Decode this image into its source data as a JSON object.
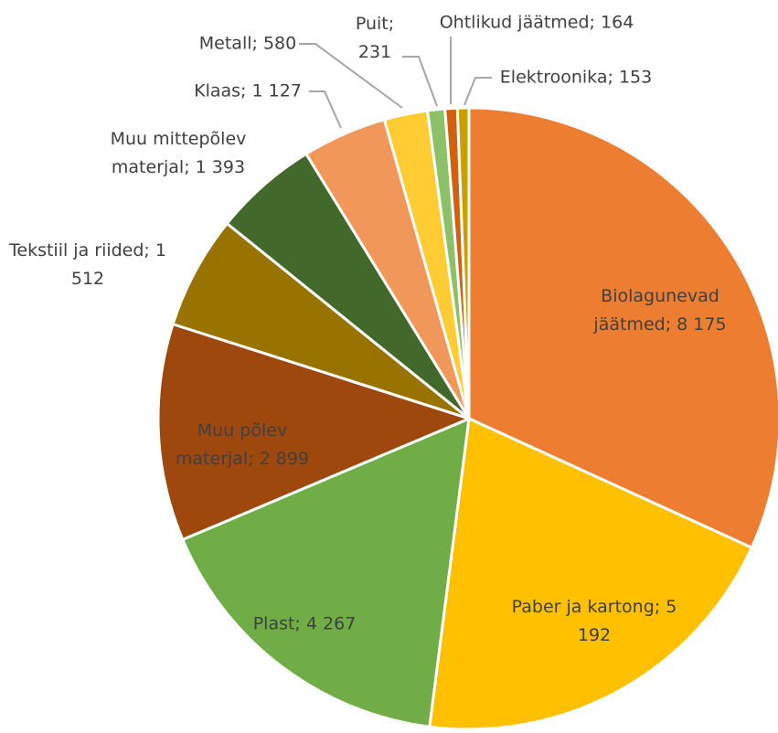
{
  "chart_data": {
    "type": "pie",
    "categories": [
      "Biolagunevad jäätmed;",
      "Paber ja kartong;",
      "Plast;",
      "Muu põlev materjal;",
      "Tekstiil ja riided;",
      "Muu mittepõlev materjal;",
      "Klaas;",
      "Metall;",
      "Puit;",
      "Ohtlikud jäätmed;",
      "Elektroonika;"
    ],
    "values": [
      8175,
      5192,
      4267,
      2899,
      1512,
      1393,
      1127,
      580,
      231,
      164,
      153
    ],
    "value_labels": [
      "8 175",
      "5 192",
      "4 267",
      "2 899",
      "1 512",
      "1 393",
      "1 127",
      "580",
      "231",
      "164",
      "153"
    ],
    "colors": [
      "#ed7d31",
      "#ffc000",
      "#70ad47",
      "#9e480e",
      "#997300",
      "#43682b",
      "#f1975a",
      "#ffcd33",
      "#8cc168",
      "#d2600f",
      "#c9a000"
    ]
  }
}
